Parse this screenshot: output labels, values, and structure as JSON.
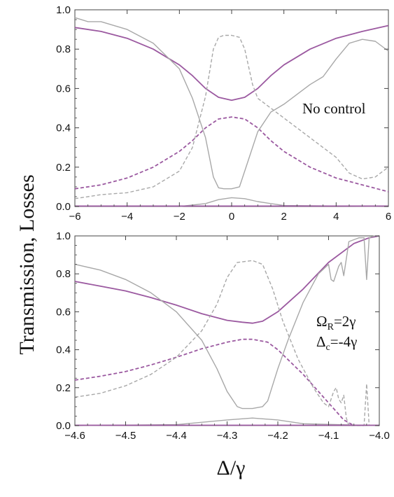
{
  "figure": {
    "ylabel": "Transmission,  Losses",
    "xlabel": "Δ/γ"
  },
  "chart_data": [
    {
      "type": "line",
      "annotation": [
        "No control"
      ],
      "xlim": [
        -6,
        6
      ],
      "ylim": [
        0,
        1
      ],
      "x_ticks": [
        -6,
        -4,
        -2,
        0,
        2,
        4,
        6
      ],
      "x_tick_labels": [
        "−6",
        "−4",
        "−2",
        "0",
        "2",
        "4",
        "6"
      ],
      "y_ticks": [
        0,
        0.2,
        0.4,
        0.6,
        0.8,
        1.0
      ],
      "y_tick_labels": [
        "0.0",
        "0.2",
        "0.4",
        "0.6",
        "0.8",
        "1.0"
      ],
      "grid": false,
      "series": [
        {
          "style": "solid",
          "color": "#9b59a0",
          "x": [
            -6,
            -5,
            -4,
            -3,
            -2,
            -1.5,
            -1,
            -0.5,
            0,
            0.5,
            1,
            1.5,
            2,
            3,
            4,
            5,
            6
          ],
          "y": [
            0.91,
            0.89,
            0.855,
            0.8,
            0.72,
            0.665,
            0.6,
            0.555,
            0.54,
            0.555,
            0.6,
            0.665,
            0.72,
            0.8,
            0.855,
            0.89,
            0.92
          ]
        },
        {
          "style": "dashed",
          "color": "#9b59a0",
          "x": [
            -6,
            -5,
            -4,
            -3,
            -2,
            -1.5,
            -1,
            -0.5,
            0,
            0.5,
            1,
            1.5,
            2,
            3,
            4,
            5,
            6
          ],
          "y": [
            0.09,
            0.11,
            0.145,
            0.2,
            0.28,
            0.335,
            0.4,
            0.445,
            0.455,
            0.445,
            0.4,
            0.335,
            0.28,
            0.2,
            0.145,
            0.11,
            0.075
          ]
        },
        {
          "style": "solid",
          "color": "#a8a8a8",
          "x": [
            -6,
            -5.5,
            -5,
            -4,
            -3,
            -2,
            -1.5,
            -1,
            -0.7,
            -0.5,
            -0.3,
            0,
            0.3,
            0.5,
            1,
            1.5,
            2,
            3,
            3.5,
            4,
            4.5,
            5,
            5.5,
            6
          ],
          "y": [
            0.96,
            0.94,
            0.94,
            0.9,
            0.83,
            0.7,
            0.55,
            0.35,
            0.15,
            0.095,
            0.09,
            0.09,
            0.1,
            0.18,
            0.38,
            0.48,
            0.52,
            0.62,
            0.66,
            0.75,
            0.83,
            0.85,
            0.84,
            0.79
          ]
        },
        {
          "style": "dashed",
          "color": "#a8a8a8",
          "x": [
            -6,
            -5,
            -4,
            -3,
            -2,
            -1.5,
            -1,
            -0.7,
            -0.5,
            -0.3,
            0,
            0.3,
            0.5,
            0.8,
            1,
            1.5,
            2,
            3,
            4,
            4.5,
            5,
            5.5,
            6
          ],
          "y": [
            0.04,
            0.06,
            0.07,
            0.1,
            0.18,
            0.3,
            0.56,
            0.8,
            0.86,
            0.87,
            0.87,
            0.86,
            0.8,
            0.62,
            0.55,
            0.5,
            0.45,
            0.35,
            0.25,
            0.17,
            0.14,
            0.15,
            0.2
          ]
        },
        {
          "style": "solid",
          "color": "#a8a8a8",
          "x": [
            -6,
            -2,
            -1,
            -0.5,
            0,
            0.5,
            1,
            2,
            6
          ],
          "y": [
            0.0,
            0.0,
            0.015,
            0.035,
            0.045,
            0.04,
            0.025,
            0.005,
            0.0
          ]
        },
        {
          "style": "solid",
          "color": "#9b59a0",
          "x": [
            -6,
            6
          ],
          "y": [
            0.002,
            0.002
          ]
        }
      ]
    },
    {
      "type": "line",
      "annotation": [
        "Ω",
        "R",
        "=2γ",
        "Δ",
        "c",
        "=-4γ"
      ],
      "xlim": [
        -4.6,
        -4.0
      ],
      "ylim": [
        0,
        1
      ],
      "x_ticks": [
        -4.6,
        -4.5,
        -4.4,
        -4.3,
        -4.2,
        -4.1,
        -4.0
      ],
      "x_tick_labels": [
        "−4.6",
        "−4.5",
        "−4.4",
        "−4.3",
        "−4.2",
        "−4.1",
        "−4.0"
      ],
      "y_ticks": [
        0,
        0.2,
        0.4,
        0.6,
        0.8,
        1.0
      ],
      "y_tick_labels": [
        "0.0",
        "0.2",
        "0.4",
        "0.6",
        "0.8",
        "1.0"
      ],
      "grid": false,
      "series": [
        {
          "style": "solid",
          "color": "#9b59a0",
          "x": [
            -4.6,
            -4.55,
            -4.5,
            -4.45,
            -4.4,
            -4.35,
            -4.3,
            -4.27,
            -4.25,
            -4.23,
            -4.2,
            -4.15,
            -4.1,
            -4.05,
            -4.02,
            -4.0
          ],
          "y": [
            0.76,
            0.735,
            0.71,
            0.675,
            0.635,
            0.59,
            0.555,
            0.545,
            0.54,
            0.55,
            0.6,
            0.72,
            0.86,
            0.96,
            0.99,
            1.0
          ]
        },
        {
          "style": "dashed",
          "color": "#9b59a0",
          "x": [
            -4.6,
            -4.55,
            -4.5,
            -4.45,
            -4.4,
            -4.35,
            -4.3,
            -4.27,
            -4.25,
            -4.22,
            -4.2,
            -4.15,
            -4.1,
            -4.07,
            -4.05
          ],
          "y": [
            0.24,
            0.26,
            0.285,
            0.32,
            0.36,
            0.405,
            0.44,
            0.455,
            0.455,
            0.44,
            0.4,
            0.27,
            0.12,
            0.03,
            0.0
          ]
        },
        {
          "style": "solid",
          "color": "#a8a8a8",
          "x": [
            -4.6,
            -4.55,
            -4.5,
            -4.45,
            -4.4,
            -4.35,
            -4.32,
            -4.3,
            -4.28,
            -4.27,
            -4.25,
            -4.23,
            -4.22,
            -4.2,
            -4.18,
            -4.15,
            -4.12,
            -4.1,
            -4.095,
            -4.09,
            -4.085,
            -4.08,
            -4.075,
            -4.07,
            -4.065,
            -4.06,
            -4.04,
            -4.03,
            -4.025,
            -4.02,
            -4.01,
            -4.0
          ],
          "y": [
            0.85,
            0.82,
            0.77,
            0.7,
            0.6,
            0.45,
            0.3,
            0.18,
            0.1,
            0.09,
            0.09,
            0.1,
            0.13,
            0.3,
            0.45,
            0.65,
            0.8,
            0.85,
            0.77,
            0.76,
            0.8,
            0.84,
            0.86,
            0.79,
            0.88,
            0.97,
            0.99,
            0.99,
            0.77,
            0.99,
            1.0,
            1.0
          ]
        },
        {
          "style": "dashed",
          "color": "#a8a8a8",
          "x": [
            -4.6,
            -4.55,
            -4.5,
            -4.45,
            -4.4,
            -4.35,
            -4.32,
            -4.3,
            -4.28,
            -4.25,
            -4.23,
            -4.21,
            -4.19,
            -4.16,
            -4.13,
            -4.11,
            -4.1,
            -4.09,
            -4.085,
            -4.08,
            -4.075,
            -4.07,
            -4.065,
            -4.06,
            -4.05,
            -4.03,
            -4.025,
            -4.02
          ],
          "y": [
            0.15,
            0.17,
            0.21,
            0.27,
            0.36,
            0.5,
            0.64,
            0.78,
            0.86,
            0.87,
            0.85,
            0.72,
            0.55,
            0.35,
            0.2,
            0.12,
            0.1,
            0.18,
            0.2,
            0.14,
            0.12,
            0.16,
            0.04,
            0.0,
            0.0,
            0.0,
            0.22,
            0.0
          ]
        },
        {
          "style": "solid",
          "color": "#a8a8a8",
          "x": [
            -4.6,
            -4.4,
            -4.3,
            -4.25,
            -4.2,
            -4.15,
            -4.0
          ],
          "y": [
            0.0,
            0.005,
            0.03,
            0.04,
            0.03,
            0.01,
            0.0
          ]
        },
        {
          "style": "solid",
          "color": "#9b59a0",
          "x": [
            -4.6,
            -4.0
          ],
          "y": [
            0.002,
            0.002
          ]
        }
      ]
    }
  ]
}
